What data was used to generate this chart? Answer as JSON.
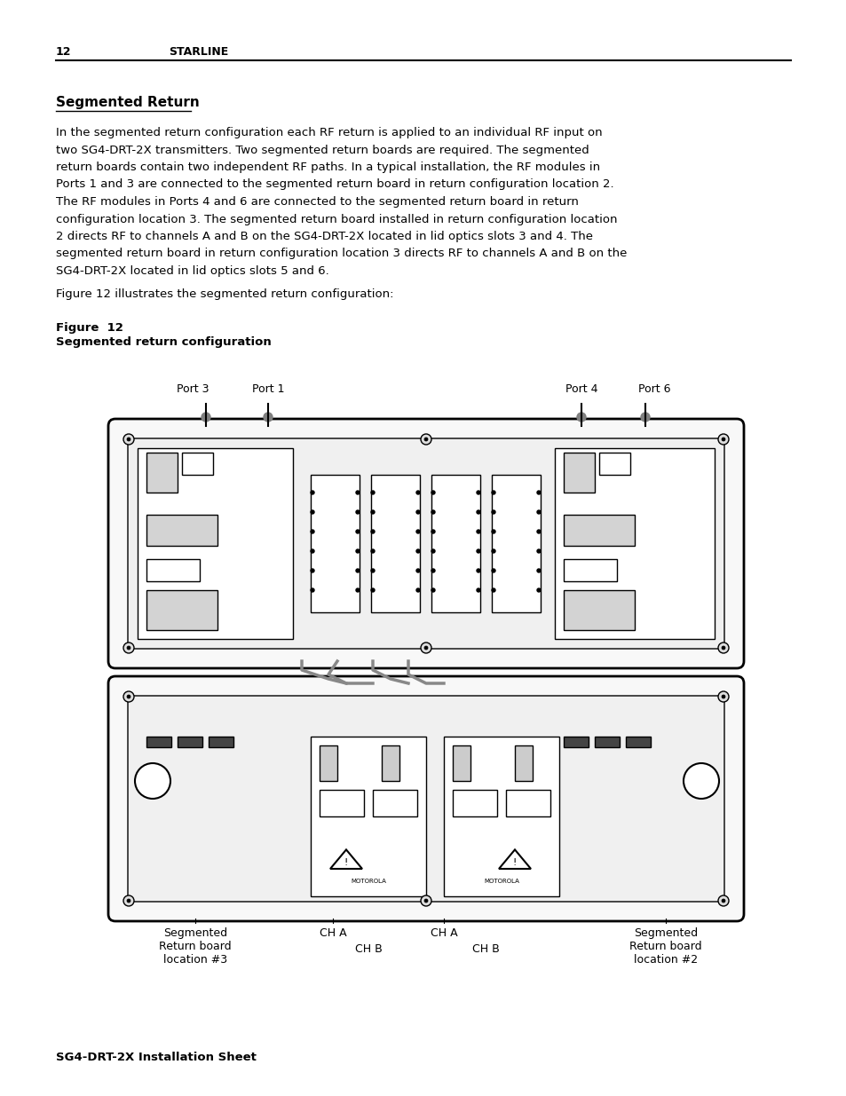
{
  "page_number": "12",
  "header_text": "STARLINE",
  "section_title": "Segmented Return",
  "body_paragraph": "In the segmented return configuration each RF return is applied to an individual RF input on\ntwo SG4-DRT-2X transmitters. Two segmented return boards are required. The segmented\nreturn boards contain two independent RF paths. In a typical installation, the RF modules in\nPorts 1 and 3 are connected to the segmented return board in return configuration location 2.\nThe RF modules in Ports 4 and 6 are connected to the segmented return board in return\nconfiguration location 3. The segmented return board installed in return configuration location\n2 directs RF to channels A and B on the SG4-DRT-2X located in lid optics slots 3 and 4. The\nsegmented return board in return configuration location 3 directs RF to channels A and B on the\nSG4-DRT-2X located in lid optics slots 5 and 6.",
  "figure_caption_line1": "Figure  12",
  "figure_caption_line2": "Segmented return configuration",
  "intro_sentence": "Figure 12 illustrates the segmented return configuration:",
  "footer_text": "SG4-DRT-2X Installation Sheet",
  "port_labels": [
    "Port 3",
    "Port 1",
    "Port 4",
    "Port 6"
  ],
  "bottom_labels": [
    "Segmented\nReturn board\nlocation #3",
    "CH A",
    "CH B",
    "CH A",
    "CH B",
    "Segmented\nReturn board\nlocation #2"
  ],
  "bg_color": "#ffffff",
  "text_color": "#000000",
  "header_line_color": "#000000"
}
